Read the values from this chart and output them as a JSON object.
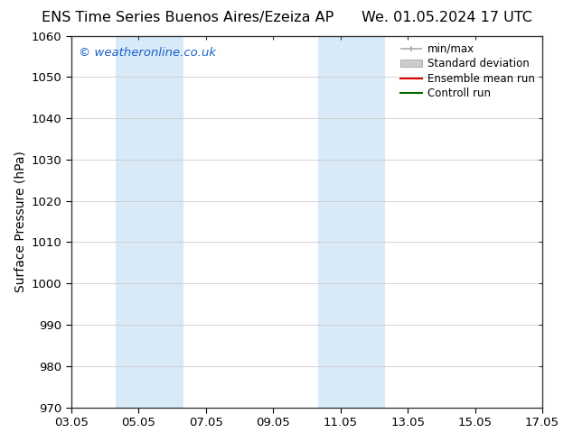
{
  "title_left": "ENS Time Series Buenos Aires/Ezeiza AP",
  "title_right": "We. 01.05.2024 17 UTC",
  "ylabel": "Surface Pressure (hPa)",
  "ylim": [
    970,
    1060
  ],
  "yticks": [
    970,
    980,
    990,
    1000,
    1010,
    1020,
    1030,
    1040,
    1050,
    1060
  ],
  "xtick_labels": [
    "03.05",
    "05.05",
    "07.05",
    "09.05",
    "11.05",
    "13.05",
    "15.05",
    "17.05"
  ],
  "xtick_positions": [
    0,
    2,
    4,
    6,
    8,
    10,
    12,
    14
  ],
  "shaded_regions": [
    {
      "x_start": 1.33,
      "x_end": 3.33,
      "color": "#d8eaf7"
    },
    {
      "x_start": 7.33,
      "x_end": 9.33,
      "color": "#d8eaf7"
    }
  ],
  "watermark_text": "© weatheronline.co.uk",
  "watermark_color": "#1a5fc8",
  "legend_entries": [
    {
      "label": "min/max",
      "color": "#aaaaaa",
      "linestyle": "-",
      "linewidth": 1.2
    },
    {
      "label": "Standard deviation",
      "color": "#cccccc",
      "linestyle": "-",
      "linewidth": 6
    },
    {
      "label": "Ensemble mean run",
      "color": "#dd0000",
      "linestyle": "-",
      "linewidth": 1.5
    },
    {
      "label": "Controll run",
      "color": "#006600",
      "linestyle": "-",
      "linewidth": 1.5
    }
  ],
  "bg_color": "#ffffff",
  "grid_color": "#cccccc",
  "title_fontsize": 11.5,
  "axis_label_fontsize": 10,
  "tick_fontsize": 9.5,
  "watermark_fontsize": 9.5
}
